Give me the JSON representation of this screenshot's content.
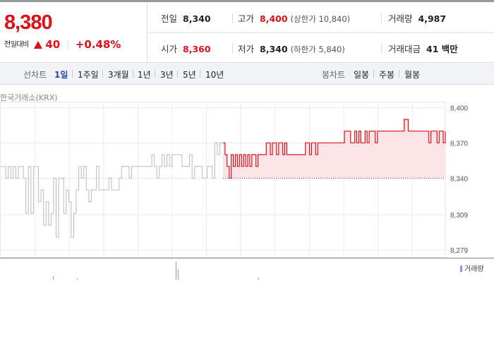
{
  "quote": {
    "price": "8,380",
    "change_label": "전일대비",
    "change_amount": "40",
    "change_percent": "+0.48%",
    "direction_icon": "up-triangle-icon",
    "prev_close": {
      "label": "전일",
      "value": "8,340"
    },
    "high": {
      "label": "고가",
      "value": "8,400",
      "limit": "(상한가 10,840)"
    },
    "volume": {
      "label": "거래량",
      "value": "4,987"
    },
    "open": {
      "label": "시가",
      "value": "8,360"
    },
    "low": {
      "label": "저가",
      "value": "8,340",
      "limit": "(하한가 5,840)"
    },
    "trade_value": {
      "label": "거래대금",
      "value": "41 백만"
    }
  },
  "colors": {
    "up": "#e0101a",
    "prev_line": "#bbbbbb",
    "fill": "#fde4e6",
    "volume": "#999999",
    "volume_legend": "#a58ad8"
  },
  "periods": {
    "line_label": "선차트",
    "line": [
      "1일",
      "1주일",
      "3개월",
      "1년",
      "3년",
      "5년",
      "10년"
    ],
    "active": "1일",
    "candle_label": "봉차트",
    "candle": [
      "일봉",
      "주봉",
      "월봉"
    ]
  },
  "chart_data": {
    "type": "line",
    "source_label": "한국거래소(KRX)",
    "y_ticks": [
      "8,400",
      "8,370",
      "8,340",
      "8,309",
      "8,279"
    ],
    "y_tick_values": [
      8400,
      8370,
      8340,
      8309,
      8279
    ],
    "ylim": [
      8273,
      8405
    ],
    "baseline": 8340,
    "legend": "거래량",
    "grid": true,
    "series": [
      {
        "values": [
          8350,
          8350,
          8340,
          8350,
          8340,
          8350,
          8340,
          8350,
          8350,
          8340,
          8310,
          8350,
          8310,
          8350,
          8350,
          8320,
          8330,
          8300,
          8320,
          8300,
          8310,
          8340,
          8290,
          8340,
          8340,
          8310,
          8330,
          8320,
          8290,
          8310,
          8330,
          8350,
          8340,
          8350,
          8330,
          8320,
          8330,
          8330,
          8350,
          8330,
          8330,
          8330,
          8330,
          8340,
          8330,
          8330,
          8330,
          8340,
          8350,
          8350,
          8350,
          8340,
          8350,
          8350,
          8350,
          8350,
          8350,
          8350,
          8350,
          8350,
          8360,
          8350,
          8340,
          8350,
          8360,
          8350,
          8360,
          8350,
          8360,
          8360,
          8360,
          8360,
          8350,
          8350,
          8350,
          8360,
          8340,
          8350,
          8350,
          8350,
          8340,
          8340,
          8350,
          8350,
          8340,
          8370,
          8360,
          8370,
          8370
        ],
        "style": "previous-session"
      },
      {
        "values": [
          8370,
          8360,
          8350,
          8340,
          8360,
          8350,
          8360,
          8350,
          8360,
          8350,
          8360,
          8350,
          8360,
          8350,
          8360,
          8360,
          8350,
          8360,
          8360,
          8360,
          8360,
          8370,
          8370,
          8360,
          8370,
          8370,
          8360,
          8370,
          8370,
          8360,
          8370,
          8360,
          8360,
          8360,
          8360,
          8360,
          8360,
          8360,
          8360,
          8360,
          8370,
          8370,
          8360,
          8370,
          8370,
          8360,
          8370,
          8370,
          8370,
          8370,
          8370,
          8370,
          8370,
          8370,
          8370,
          8370,
          8370,
          8370,
          8370,
          8380,
          8380,
          8380,
          8370,
          8370,
          8380,
          8370,
          8380,
          8370,
          8370,
          8380,
          8370,
          8380,
          8380,
          8380,
          8370,
          8380,
          8380,
          8380,
          8380,
          8380,
          8380,
          8380,
          8380,
          8380,
          8380,
          8380,
          8380,
          8380,
          8390,
          8390,
          8380,
          8380,
          8380,
          8380,
          8380,
          8380,
          8380,
          8380,
          8380,
          8380,
          8370,
          8380,
          8380,
          8380,
          8370,
          8380,
          8380,
          8370,
          8380
        ],
        "style": "today"
      }
    ],
    "volume_values": [
      0,
      0,
      0,
      0,
      0,
      0,
      0,
      0,
      0,
      0,
      0,
      0,
      0,
      0,
      0,
      0,
      0,
      0,
      0,
      0,
      0,
      0,
      0,
      0,
      0,
      0,
      22,
      0,
      0,
      0,
      0,
      0,
      0,
      0,
      0,
      0,
      0,
      0,
      9,
      0,
      0,
      0,
      0,
      0,
      0,
      0,
      0,
      0,
      0,
      0,
      0,
      0,
      0,
      0,
      0,
      0,
      0,
      0,
      0,
      0,
      0,
      0,
      0,
      0,
      0,
      0,
      0,
      0,
      0,
      0,
      0,
      0,
      0,
      0,
      0,
      0,
      0,
      0,
      0,
      0,
      0,
      0,
      0,
      0,
      0,
      0,
      0,
      100,
      60,
      0,
      0,
      0,
      0,
      0,
      0,
      0,
      0,
      0,
      0,
      0,
      0,
      0,
      0,
      0,
      0,
      0,
      0,
      0,
      0,
      0,
      0,
      0,
      0,
      0,
      0,
      0,
      0,
      0,
      0,
      0,
      0,
      0,
      0,
      0,
      0,
      0,
      0,
      0,
      12,
      0,
      0,
      0,
      0,
      0,
      0,
      0,
      0,
      0,
      0,
      0,
      0,
      0,
      0,
      0,
      0,
      0,
      0,
      0,
      0,
      0,
      0,
      0,
      0,
      0,
      0,
      0,
      0,
      0,
      0,
      0,
      0,
      0,
      0,
      0,
      0,
      0,
      0,
      0,
      0,
      0,
      0,
      0,
      0,
      0,
      0,
      0,
      0,
      0,
      0,
      0,
      0,
      0,
      0,
      0,
      0,
      0,
      0,
      0,
      0,
      0,
      0,
      0,
      0,
      0,
      0,
      0,
      0,
      0,
      0,
      0,
      0,
      0,
      0,
      0,
      0,
      0,
      0,
      0,
      0,
      0,
      0,
      0,
      0,
      0,
      0,
      0,
      0,
      0,
      0,
      0,
      0,
      0
    ]
  }
}
